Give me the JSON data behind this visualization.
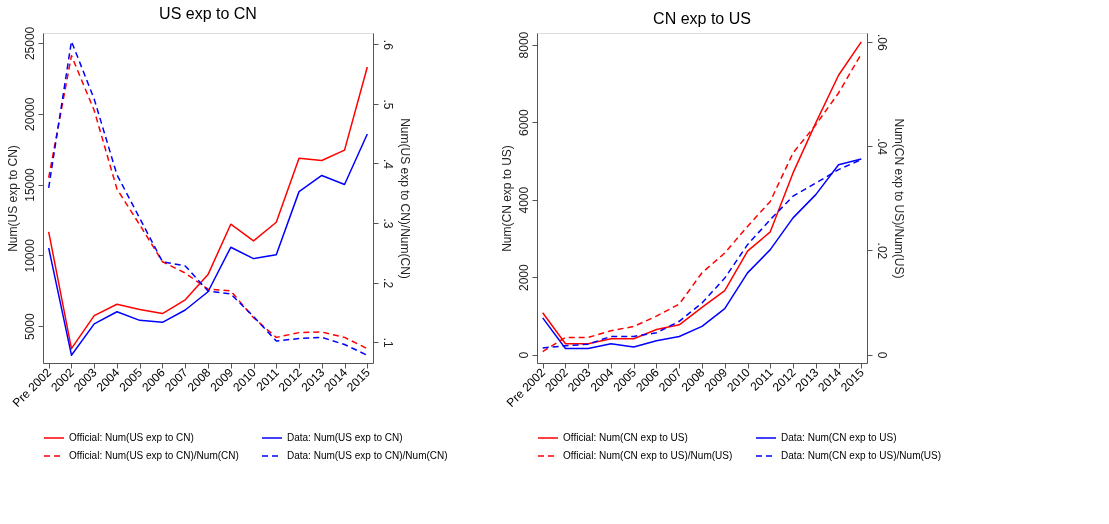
{
  "chart_data": [
    {
      "type": "line",
      "title": "US exp to CN",
      "ylabel": "Num(US exp to CN)",
      "y2label": "Num(US exp to CN)/Num(CN)",
      "categories": [
        "Pre 2002",
        "2002",
        "2003",
        "2004",
        "2005",
        "2006",
        "2007",
        "2008",
        "2009",
        "2010",
        "2011",
        "2012",
        "2013",
        "2014",
        "2015"
      ],
      "ylim": [
        2400,
        25700
      ],
      "yticks": [
        5000,
        10000,
        15000,
        20000,
        25000
      ],
      "y2lim": [
        0.065,
        0.619
      ],
      "y2ticks": [
        {
          "value": 0.1,
          "label": ".1"
        },
        {
          "value": 0.2,
          "label": ".2"
        },
        {
          "value": 0.3,
          "label": ".3"
        },
        {
          "value": 0.4,
          "label": ".4"
        },
        {
          "value": 0.5,
          "label": ".5"
        },
        {
          "value": 0.6,
          "label": ".6"
        }
      ],
      "grid": false,
      "legend": "bottom",
      "marker": "none",
      "series": [
        {
          "name": "Official: Num(US exp to CN)",
          "color": "#ff0000",
          "line_style": "solid",
          "axis": "y",
          "values": [
            11660,
            3410,
            5750,
            6550,
            6180,
            5890,
            6860,
            8640,
            12200,
            11020,
            12340,
            16860,
            16700,
            17430,
            23300
          ]
        },
        {
          "name": "Data: Num(US exp to CN)",
          "color": "#0000ff",
          "line_style": "solid",
          "axis": "y",
          "values": [
            10520,
            2950,
            5160,
            6020,
            5410,
            5270,
            6140,
            7430,
            10570,
            9770,
            10050,
            14500,
            15640,
            15000,
            18570
          ]
        },
        {
          "name": "Official: Num(US exp to CN)/Num(CN)",
          "color": "#ff0000",
          "line_style": "dashed",
          "axis": "y2",
          "values": [
            0.376,
            0.581,
            0.489,
            0.357,
            0.297,
            0.235,
            0.216,
            0.189,
            0.186,
            0.141,
            0.108,
            0.116,
            0.117,
            0.108,
            0.089
          ]
        },
        {
          "name": "Data: Num(US exp to CN)/Num(CN)",
          "color": "#0000ff",
          "line_style": "dashed",
          "axis": "y2",
          "values": [
            0.359,
            0.605,
            0.508,
            0.381,
            0.308,
            0.235,
            0.228,
            0.186,
            0.181,
            0.143,
            0.102,
            0.106,
            0.108,
            0.096,
            0.078
          ]
        }
      ]
    },
    {
      "type": "line",
      "title": "CN exp to US",
      "ylabel": "Num(CN exp to US)",
      "y2label": "Num(CN exp to US)/Num(US)",
      "categories": [
        "Pre 2002",
        "2002",
        "2003",
        "2004",
        "2005",
        "2006",
        "2007",
        "2008",
        "2009",
        "2010",
        "2011",
        "2012",
        "2013",
        "2014",
        "2015"
      ],
      "ylim": [
        -215,
        8300
      ],
      "yticks": [
        0,
        2000,
        4000,
        6000,
        8000
      ],
      "y2lim": [
        -0.0016,
        0.0617
      ],
      "y2ticks": [
        0,
        {
          "value": 0.02,
          "label": ".02"
        },
        {
          "value": 0.04,
          "label": ".04"
        },
        {
          "value": 0.06,
          "label": ".06"
        }
      ],
      "grid": false,
      "legend": "bottom",
      "marker": "none",
      "series": [
        {
          "name": "Official: Num(CN exp to US)",
          "color": "#ff0000",
          "line_style": "solid",
          "axis": "y",
          "values": [
            1080,
            280,
            280,
            410,
            410,
            650,
            770,
            1220,
            1650,
            2670,
            3170,
            4690,
            5980,
            7210,
            8070
          ]
        },
        {
          "name": "Data: Num(CN exp to US)",
          "color": "#0000ff",
          "line_style": "solid",
          "axis": "y",
          "values": [
            950,
            160,
            160,
            280,
            200,
            360,
            470,
            730,
            1190,
            2110,
            2710,
            3530,
            4130,
            4900,
            5050
          ]
        },
        {
          "name": "Official: Num(CN exp to US)/Num(US)",
          "color": "#ff0000",
          "line_style": "dashed",
          "axis": "y2",
          "values": [
            0.0006,
            0.0033,
            0.0033,
            0.0046,
            0.0054,
            0.0074,
            0.0097,
            0.0157,
            0.0195,
            0.0246,
            0.0294,
            0.0387,
            0.0441,
            0.0502,
            0.0577
          ]
        },
        {
          "name": "Data: Num(CN exp to US)/Num(US)",
          "color": "#0000ff",
          "line_style": "dashed",
          "axis": "y2",
          "values": [
            0.0013,
            0.0017,
            0.002,
            0.0035,
            0.0035,
            0.0042,
            0.0064,
            0.0099,
            0.0147,
            0.0211,
            0.0259,
            0.0304,
            0.0329,
            0.0355,
            0.0374
          ]
        }
      ]
    }
  ]
}
